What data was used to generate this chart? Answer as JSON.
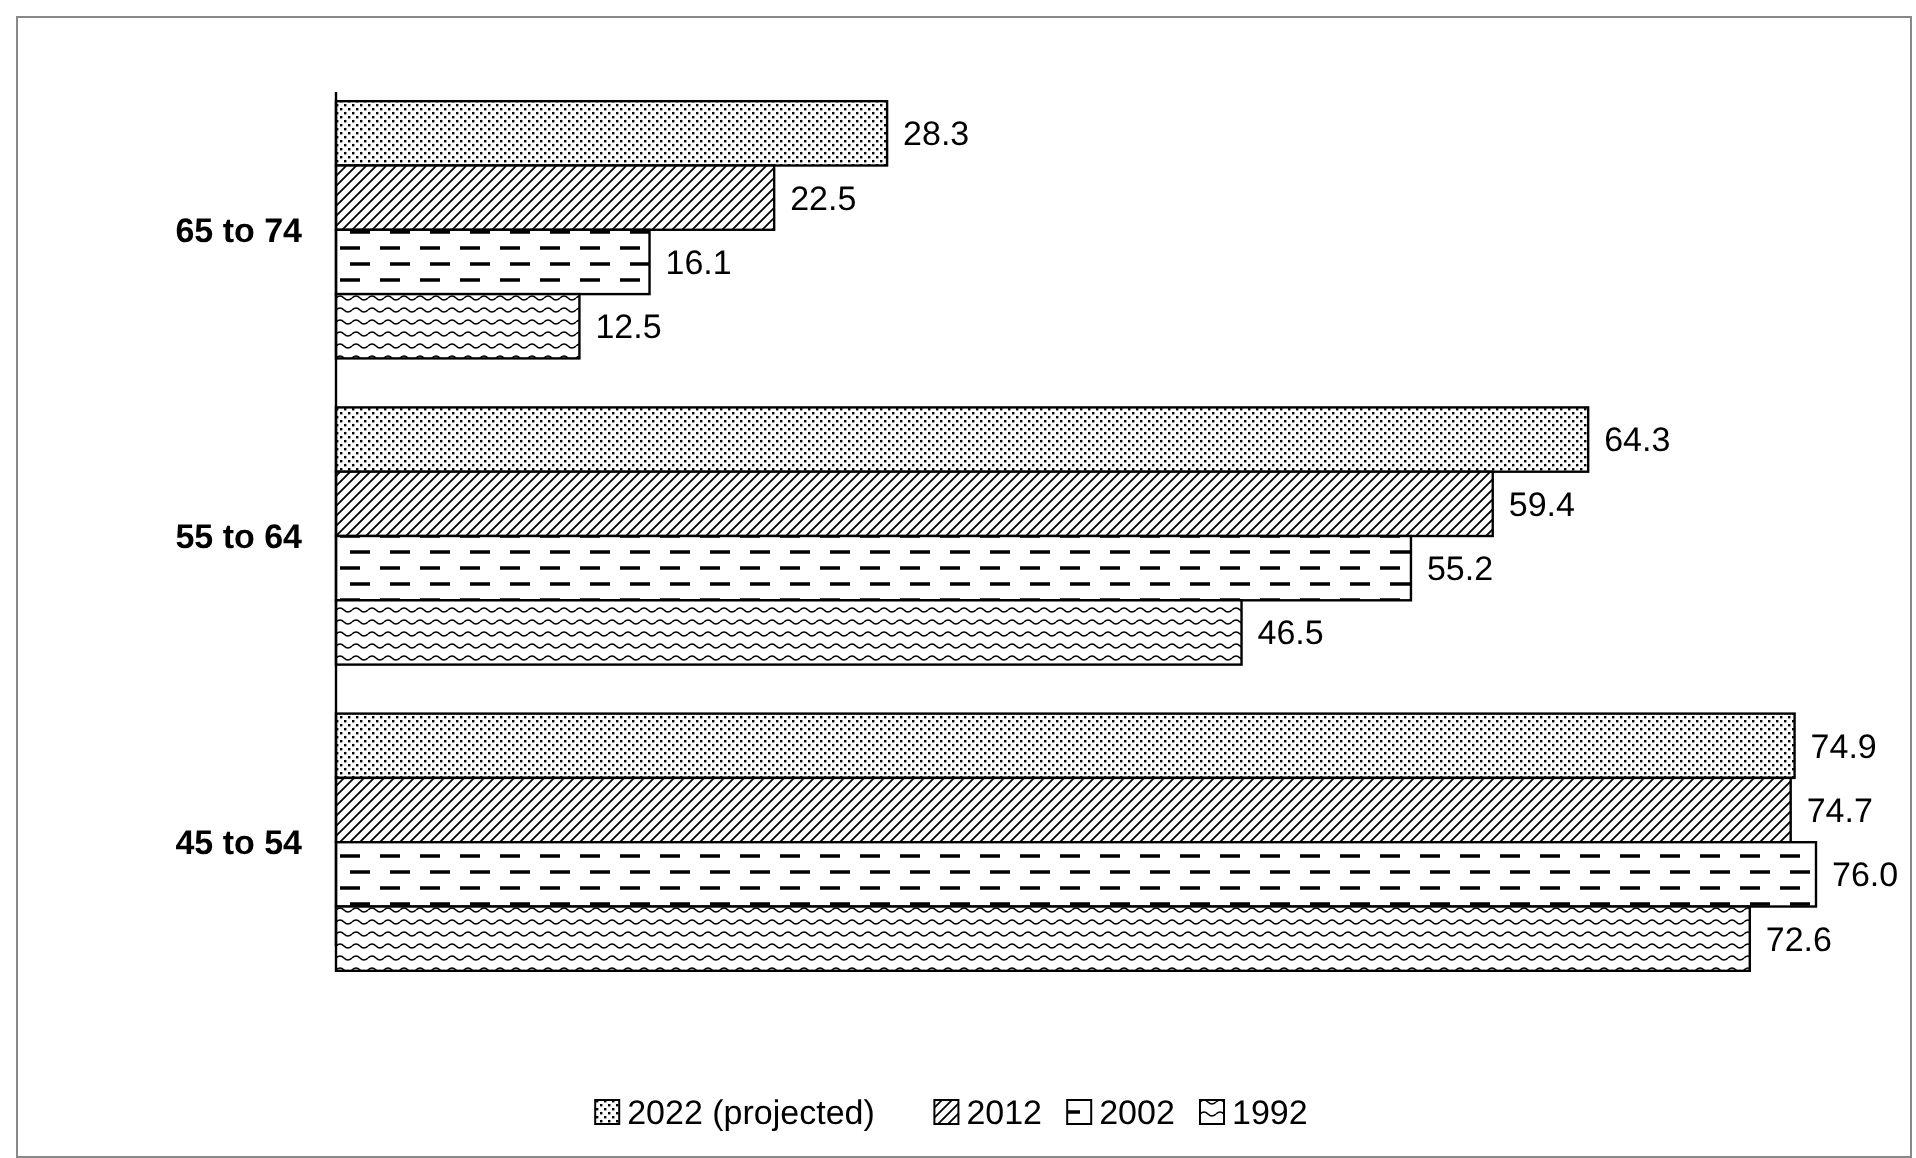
{
  "chart_data": {
    "type": "bar",
    "orientation": "horizontal",
    "categories": [
      "65 to 74",
      "55 to 64",
      "45 to 54"
    ],
    "series": [
      {
        "name": "2022 (projected)",
        "color": "#000000",
        "values": [
          28.3,
          64.3,
          74.9
        ],
        "value_labels": [
          "28.3",
          "64.3",
          "74.9"
        ]
      },
      {
        "name": "2012",
        "color": "#000000",
        "values": [
          22.5,
          59.4,
          74.7
        ],
        "value_labels": [
          "22.5",
          "59.4",
          "74.7"
        ]
      },
      {
        "name": "2002",
        "color": "#000000",
        "values": [
          16.1,
          55.2,
          76.0
        ],
        "value_labels": [
          "16.1",
          "55.2",
          "76.0"
        ]
      },
      {
        "name": "1992",
        "color": "#000000",
        "values": [
          12.5,
          46.5,
          72.6
        ],
        "value_labels": [
          "12.5",
          "46.5",
          "72.6"
        ]
      }
    ],
    "legend": "bottom"
  }
}
